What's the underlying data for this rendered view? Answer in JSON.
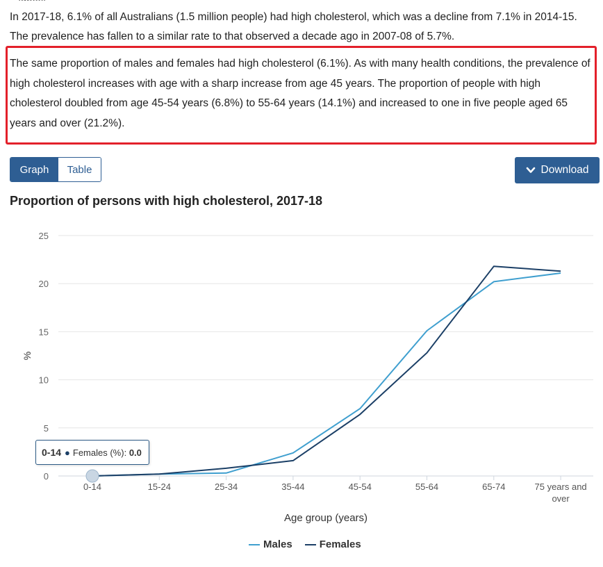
{
  "header_cutoff": "...ighest...",
  "para1": "In 2017-18, 6.1% of all Australians (1.5 million people) had high cholesterol, which was a decline from 7.1% in 2014-15. The prevalence has fallen to a similar rate to that observed a decade ago in 2007-08 of 5.7%.",
  "para2": "The same proportion of males and females had high cholesterol (6.1%). As with many health conditions, the prevalence of high cholesterol increases with age with a sharp increase from age 45 years. The proportion of people with high cholesterol doubled from age 45-54 years (6.8%) to 55-64 years (14.1%) and increased to one in five people aged 65 years and over (21.2%).",
  "toggle": {
    "graph_label": "Graph",
    "table_label": "Table"
  },
  "download_label": "Download",
  "tooltip": {
    "category": "0-14",
    "series": "Females (%):",
    "value": "0.0"
  },
  "colors": {
    "accent": "#2e5e93",
    "males": "#3f9fcf",
    "females": "#1b3f66",
    "highlight_border": "#e3202a"
  },
  "chart_data": {
    "type": "line",
    "title": "Proportion of persons with high cholesterol, 2017-18",
    "xlabel": "Age group (years)",
    "ylabel": "%",
    "ylim": [
      0,
      25
    ],
    "yticks": [
      0,
      5,
      10,
      15,
      20,
      25
    ],
    "categories": [
      "0-14",
      "15-24",
      "25-34",
      "35-44",
      "45-54",
      "55-64",
      "65-74",
      "75 years and over"
    ],
    "series": [
      {
        "name": "Males",
        "values": [
          0.0,
          0.2,
          0.3,
          2.4,
          7.0,
          15.1,
          20.2,
          21.1
        ]
      },
      {
        "name": "Females",
        "values": [
          0.0,
          0.2,
          0.8,
          1.6,
          6.4,
          12.8,
          21.8,
          21.3
        ]
      }
    ],
    "grid": true,
    "legend": "bottom-center"
  }
}
